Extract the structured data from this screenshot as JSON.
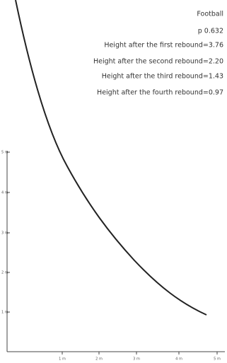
{
  "info": {
    "title": "Football",
    "p": "p 0.632",
    "lines": [
      "Height after the first rebound=3.76",
      "Height after the second rebound=2.20",
      "Height after the third rebound=1.43",
      "Height after the fourth rebound=0.97"
    ]
  },
  "axes": {
    "y_labels": [
      "5 m",
      "4 m",
      "3 m",
      "2 m",
      "1 m"
    ],
    "x_labels": [
      "1 m",
      "2 m",
      "3 m",
      "4 m",
      "5 m"
    ]
  }
}
